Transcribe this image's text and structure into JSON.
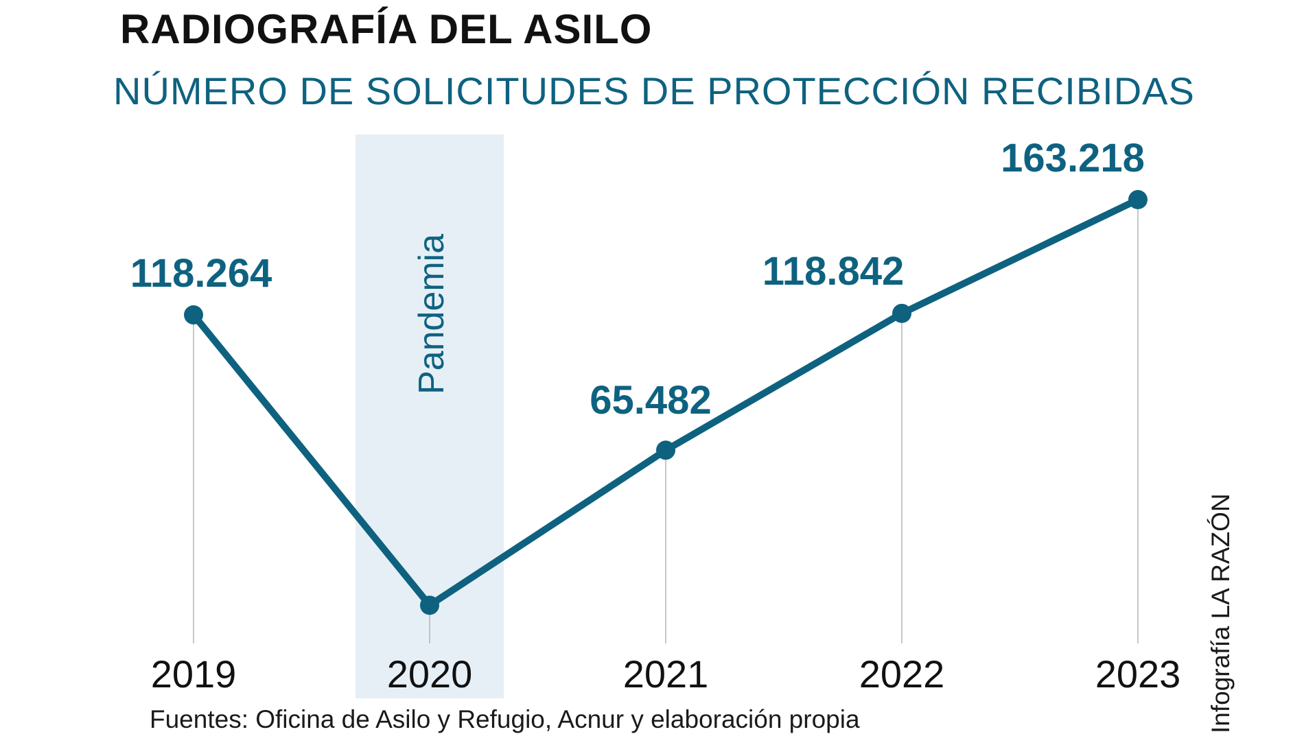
{
  "header": {
    "title": "RADIOGRAFÍA DEL ASILO",
    "subtitle": "NÚMERO DE SOLICITUDES DE PROTECCIÓN RECIBIDAS"
  },
  "chart_data": {
    "type": "line",
    "title": "RADIOGRAFÍA DEL ASILO",
    "subtitle": "NÚMERO DE SOLICITUDES DE PROTECCIÓN RECIBIDAS",
    "categories": [
      "2019",
      "2020",
      "2021",
      "2022",
      "2023"
    ],
    "values": [
      118264,
      5000,
      65482,
      118842,
      163218
    ],
    "data_labels": [
      "118.264",
      "",
      "65.482",
      "118.842",
      "163.218"
    ],
    "highlight": {
      "category": "2020",
      "label": "Pandemia"
    },
    "ylim": [
      0,
      170000
    ],
    "grid": false
  },
  "colors": {
    "series": "#0e6280",
    "highlight_band": "#e6eff5",
    "guide_line": "#b5b5b5",
    "axis_text": "#111111"
  },
  "footer": {
    "source": "Fuentes: Oficina de Asilo y Refugio, Acnur y elaboración propia",
    "credit": "Infografía LA RAZÓN"
  }
}
